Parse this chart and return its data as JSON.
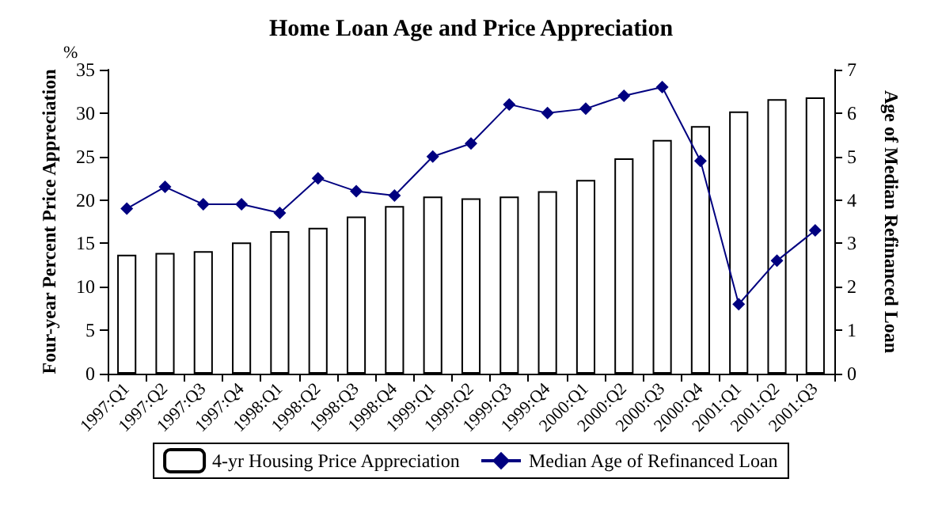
{
  "chart_data": {
    "type": "bar",
    "title": "Home Loan Age and Price Appreciation",
    "ylabel": "Four-year Percent Price Appreciation",
    "y2label": "Age of Median Refinanced Loan",
    "annotations": [
      "%"
    ],
    "categories": [
      "1997:Q1",
      "1997:Q2",
      "1997:Q3",
      "1997:Q4",
      "1998:Q1",
      "1998:Q2",
      "1998:Q3",
      "1998:Q4",
      "1999:Q1",
      "1999:Q2",
      "1999:Q3",
      "1999:Q4",
      "2000:Q1",
      "2000:Q2",
      "2000:Q3",
      "2000:Q4",
      "2001:Q1",
      "2001:Q2",
      "2001:Q3"
    ],
    "series": [
      {
        "name": "4-yr Housing Price Appreciation",
        "color": "#ffffff",
        "values": [
          13.7,
          13.9,
          14.1,
          15.1,
          16.4,
          16.8,
          18.1,
          19.3,
          20.4,
          20.2,
          20.4,
          21.0,
          22.3,
          24.8,
          26.9,
          28.5,
          30.2,
          31.6,
          31.8
        ]
      },
      {
        "name": "Median Age of Refinanced Loan",
        "type": "line",
        "axis": "y2",
        "color": "#000080",
        "marker": "diamond",
        "values": [
          3.8,
          4.3,
          3.9,
          3.9,
          3.7,
          4.5,
          4.2,
          4.1,
          5.0,
          5.3,
          6.2,
          6.0,
          6.1,
          6.4,
          6.6,
          4.9,
          1.6,
          2.6,
          3.3
        ]
      }
    ],
    "ylim": [
      0,
      35
    ],
    "yticks": [
      0,
      5,
      10,
      15,
      20,
      25,
      30,
      35
    ],
    "y2lim": [
      0,
      7
    ],
    "y2ticks": [
      0,
      1,
      2,
      3,
      4,
      5,
      6,
      7
    ],
    "grid": false,
    "legend": "bottom"
  }
}
